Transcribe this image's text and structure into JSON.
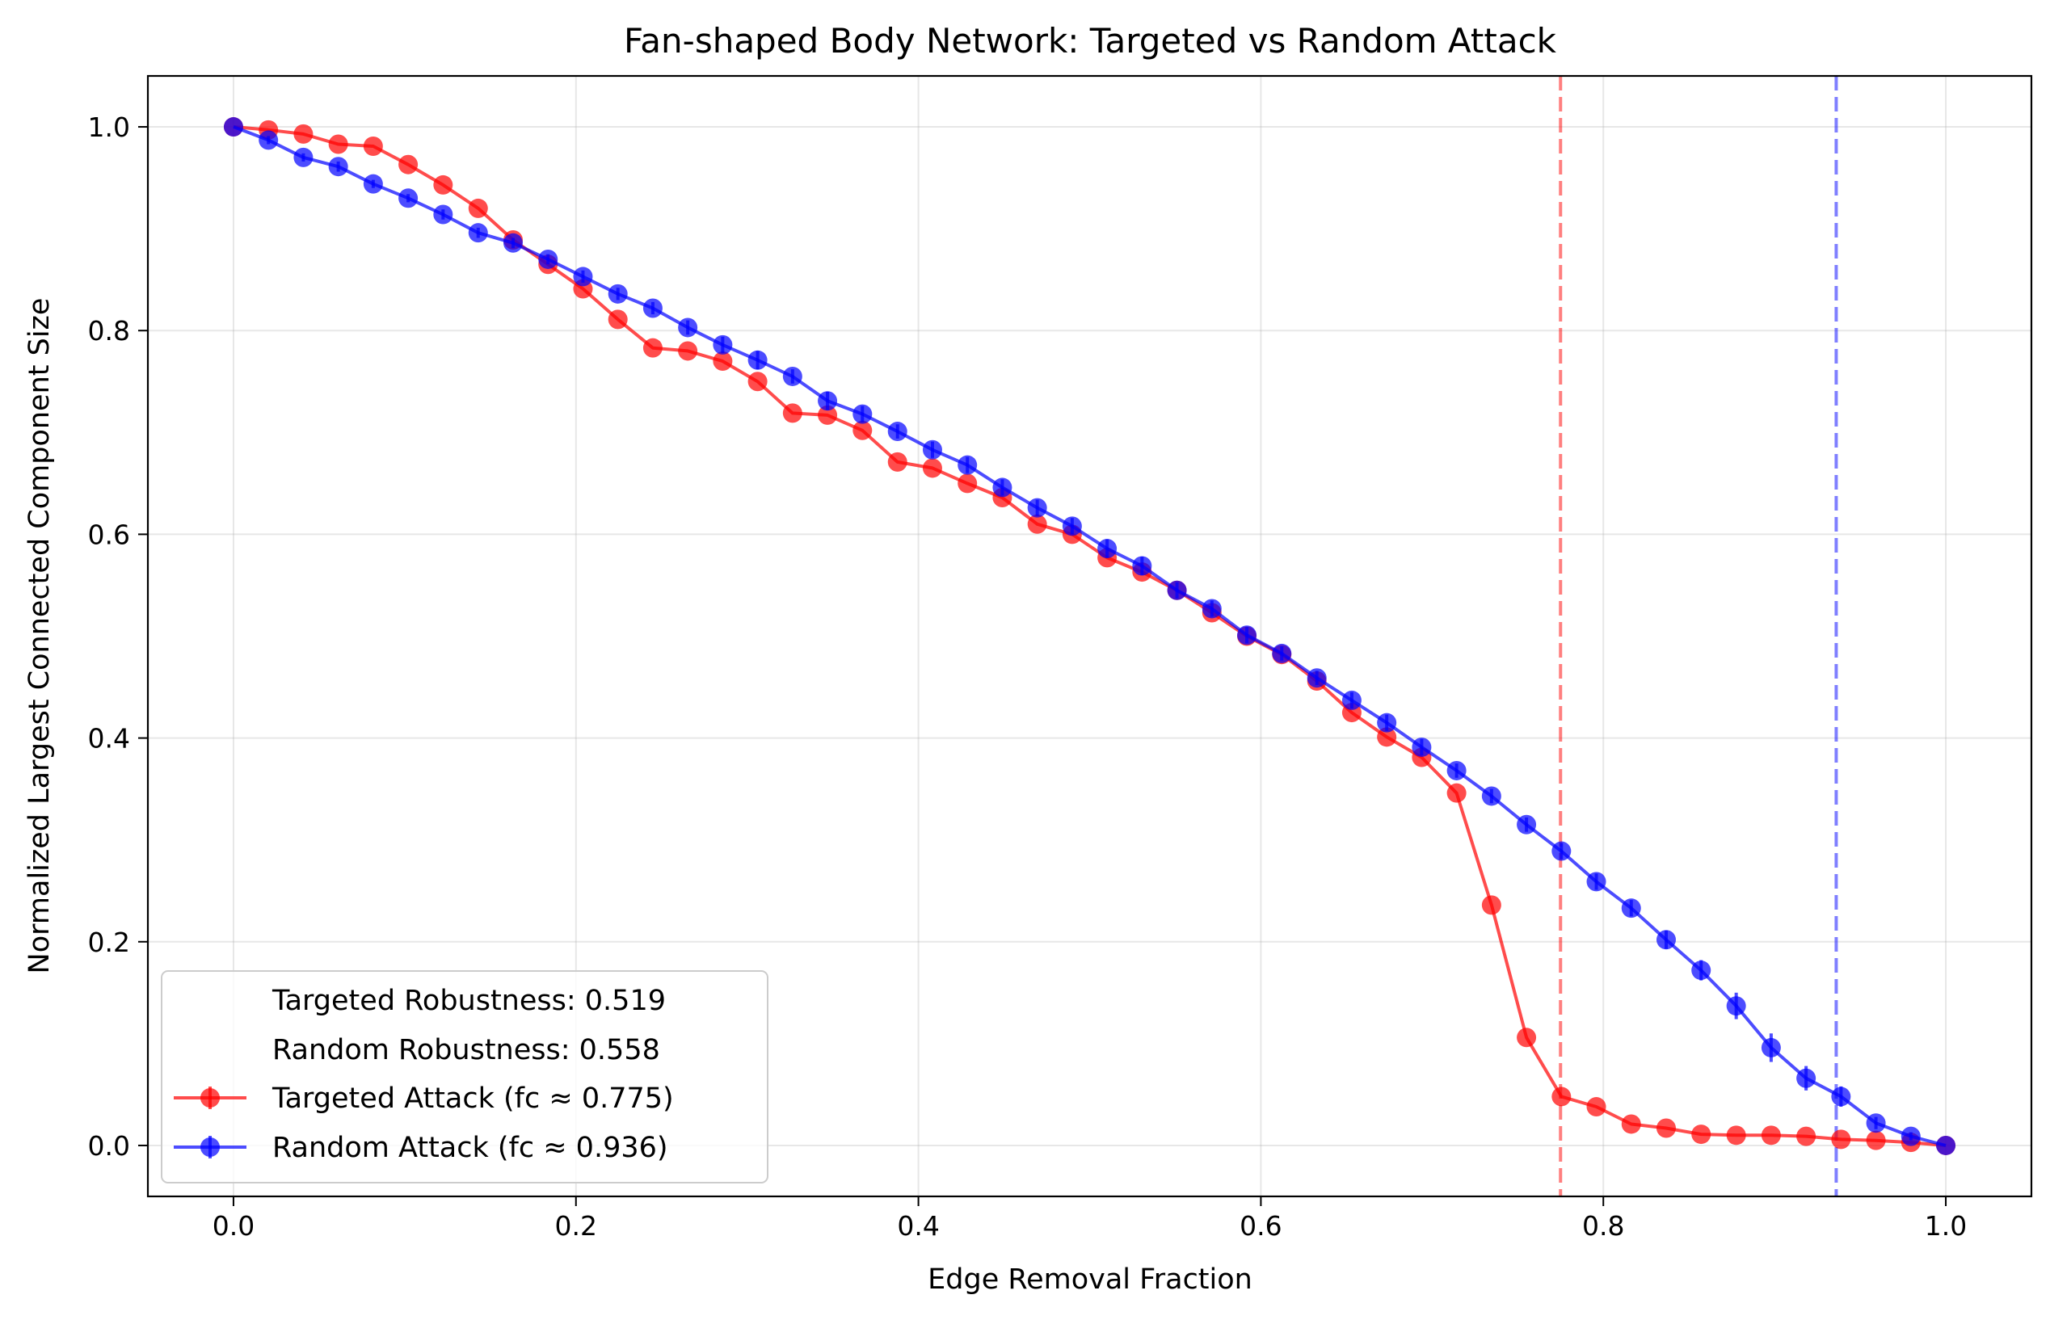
{
  "chart_data": {
    "type": "line",
    "title": "Fan-shaped Body Network: Targeted vs Random Attack",
    "xlabel": "Edge Removal Fraction",
    "ylabel": "Normalized Largest Connected Component Size",
    "xlim": [
      -0.05,
      1.05
    ],
    "ylim": [
      -0.05,
      1.05
    ],
    "xticks": [
      0.0,
      0.2,
      0.4,
      0.6,
      0.8,
      1.0
    ],
    "xtick_labels": [
      "0.0",
      "0.2",
      "0.4",
      "0.6",
      "0.8",
      "1.0"
    ],
    "yticks": [
      0.0,
      0.2,
      0.4,
      0.6,
      0.8,
      1.0
    ],
    "ytick_labels": [
      "0.0",
      "0.2",
      "0.4",
      "0.6",
      "0.8",
      "1.0"
    ],
    "grid": true,
    "legend_position": "lower-left",
    "legend_text_entries": [
      "Targeted Robustness: 0.519",
      "Random Robustness: 0.558"
    ],
    "vlines": [
      {
        "x": 0.775,
        "color": "#ff0000"
      },
      {
        "x": 0.936,
        "color": "#0000ff"
      }
    ],
    "x": [
      0.0,
      0.0204,
      0.0408,
      0.0612,
      0.0816,
      0.102,
      0.1224,
      0.1429,
      0.1633,
      0.1837,
      0.2041,
      0.2245,
      0.2449,
      0.2653,
      0.2857,
      0.3061,
      0.3265,
      0.3469,
      0.3673,
      0.3878,
      0.4082,
      0.4286,
      0.449,
      0.4694,
      0.4898,
      0.5102,
      0.5306,
      0.551,
      0.5714,
      0.5918,
      0.6122,
      0.6327,
      0.6531,
      0.6735,
      0.6939,
      0.7143,
      0.7347,
      0.7551,
      0.7755,
      0.7959,
      0.8163,
      0.8367,
      0.8571,
      0.8776,
      0.898,
      0.9184,
      0.9388,
      0.9592,
      0.9796,
      1.0
    ],
    "series": [
      {
        "name": "Targeted Attack (fc ≈ 0.775)",
        "color": "#ff0000",
        "values": [
          1.0,
          0.997,
          0.993,
          0.983,
          0.981,
          0.963,
          0.943,
          0.92,
          0.889,
          0.865,
          0.841,
          0.811,
          0.783,
          0.78,
          0.77,
          0.75,
          0.719,
          0.717,
          0.702,
          0.671,
          0.665,
          0.65,
          0.636,
          0.61,
          0.6,
          0.577,
          0.563,
          0.545,
          0.523,
          0.5,
          0.482,
          0.456,
          0.425,
          0.401,
          0.381,
          0.346,
          0.236,
          0.106,
          0.048,
          0.038,
          0.021,
          0.017,
          0.011,
          0.01,
          0.01,
          0.009,
          0.006,
          0.005,
          0.003,
          0.0
        ],
        "errors": []
      },
      {
        "name": "Random Attack (fc ≈ 0.936)",
        "color": "#0000ff",
        "values": [
          1.0,
          0.987,
          0.97,
          0.961,
          0.944,
          0.93,
          0.914,
          0.896,
          0.886,
          0.87,
          0.853,
          0.836,
          0.822,
          0.803,
          0.786,
          0.771,
          0.755,
          0.731,
          0.718,
          0.701,
          0.683,
          0.668,
          0.646,
          0.626,
          0.608,
          0.586,
          0.569,
          0.545,
          0.527,
          0.501,
          0.483,
          0.459,
          0.437,
          0.415,
          0.391,
          0.368,
          0.343,
          0.315,
          0.289,
          0.259,
          0.233,
          0.202,
          0.172,
          0.137,
          0.096,
          0.066,
          0.048,
          0.022,
          0.009,
          0.0
        ],
        "errors": [
          0.0,
          0.004,
          0.004,
          0.005,
          0.004,
          0.004,
          0.005,
          0.005,
          0.005,
          0.005,
          0.006,
          0.006,
          0.006,
          0.007,
          0.008,
          0.009,
          0.007,
          0.009,
          0.008,
          0.007,
          0.008,
          0.008,
          0.008,
          0.008,
          0.008,
          0.009,
          0.009,
          0.008,
          0.008,
          0.008,
          0.007,
          0.007,
          0.008,
          0.008,
          0.008,
          0.007,
          0.007,
          0.007,
          0.008,
          0.008,
          0.008,
          0.009,
          0.01,
          0.013,
          0.014,
          0.012,
          0.01,
          0.006,
          0.004,
          0.0
        ]
      }
    ]
  }
}
